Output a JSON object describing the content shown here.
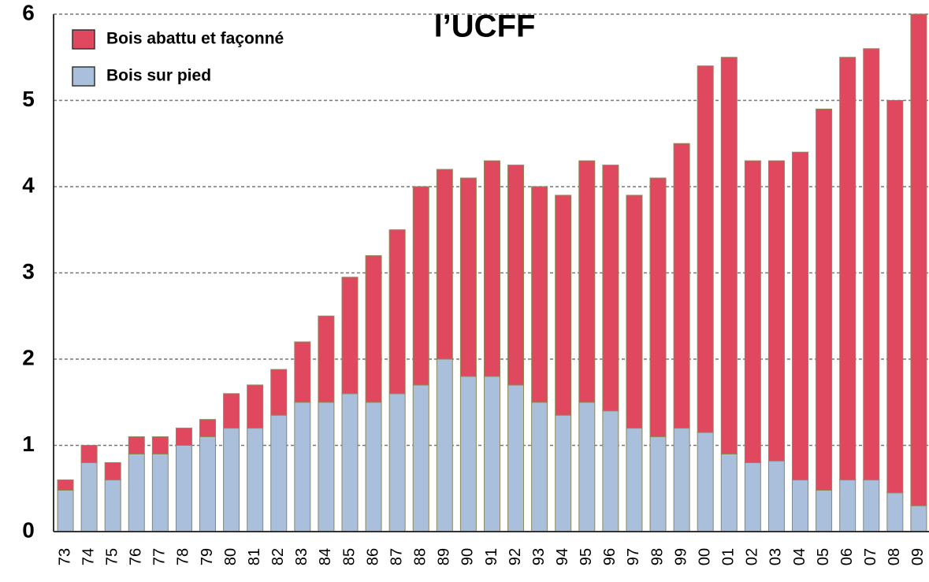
{
  "chart_data": {
    "type": "stacked-bar",
    "title": "l’UCFF",
    "categories": [
      "73",
      "74",
      "75",
      "76",
      "77",
      "78",
      "79",
      "80",
      "81",
      "82",
      "83",
      "84",
      "85",
      "86",
      "87",
      "88",
      "89",
      "90",
      "91",
      "92",
      "93",
      "94",
      "95",
      "96",
      "97",
      "98",
      "99",
      "00",
      "01",
      "02",
      "03",
      "04",
      "05",
      "06",
      "07",
      "08",
      "09"
    ],
    "series": [
      {
        "name": "Bois sur pied",
        "color": "#a9bfdc",
        "values": [
          0.48,
          0.8,
          0.6,
          0.9,
          0.9,
          1.0,
          1.1,
          1.2,
          1.2,
          1.35,
          1.5,
          1.5,
          1.6,
          1.5,
          1.6,
          1.7,
          2.0,
          1.8,
          1.8,
          1.7,
          1.5,
          1.35,
          1.5,
          1.4,
          1.2,
          1.1,
          1.2,
          1.15,
          0.9,
          0.8,
          0.82,
          0.6,
          0.48,
          0.6,
          0.6,
          0.45,
          0.3
        ]
      },
      {
        "name": "Bois abattu et façonné",
        "color": "#e0485f",
        "values": [
          0.12,
          0.2,
          0.2,
          0.2,
          0.2,
          0.2,
          0.2,
          0.4,
          0.5,
          0.53,
          0.7,
          1.0,
          1.35,
          1.7,
          1.9,
          2.3,
          2.2,
          2.3,
          2.5,
          2.55,
          2.5,
          2.55,
          2.8,
          2.85,
          2.7,
          3.0,
          3.3,
          4.25,
          4.6,
          3.5,
          3.48,
          3.8,
          4.42,
          4.9,
          5.0,
          4.55,
          5.7
        ]
      }
    ],
    "ylim": [
      0,
      6
    ],
    "yticks": [
      0,
      1,
      2,
      3,
      4,
      5,
      6
    ],
    "grid": true
  }
}
